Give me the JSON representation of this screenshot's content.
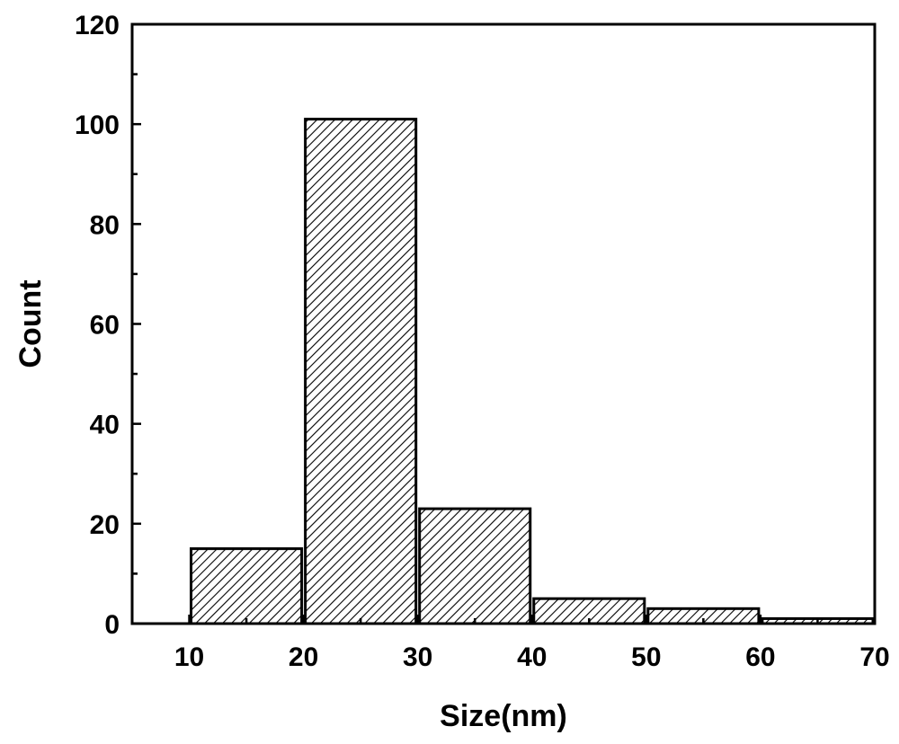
{
  "chart_data": {
    "type": "bar",
    "title": "",
    "xlabel": "Size(nm)",
    "ylabel": "Count",
    "bins": [
      [
        10,
        20
      ],
      [
        20,
        30
      ],
      [
        30,
        40
      ],
      [
        40,
        50
      ],
      [
        50,
        60
      ],
      [
        60,
        70
      ]
    ],
    "values": [
      15,
      101,
      23,
      5,
      3,
      1
    ],
    "xlim": [
      5,
      70
    ],
    "ylim": [
      0,
      120
    ],
    "xticks": [
      10,
      20,
      30,
      40,
      50,
      60,
      70
    ],
    "yticks": [
      0,
      20,
      40,
      60,
      80,
      100,
      120
    ],
    "bar_fill": "hatched",
    "bar_color": "#000000",
    "grid": false,
    "legend": false
  }
}
